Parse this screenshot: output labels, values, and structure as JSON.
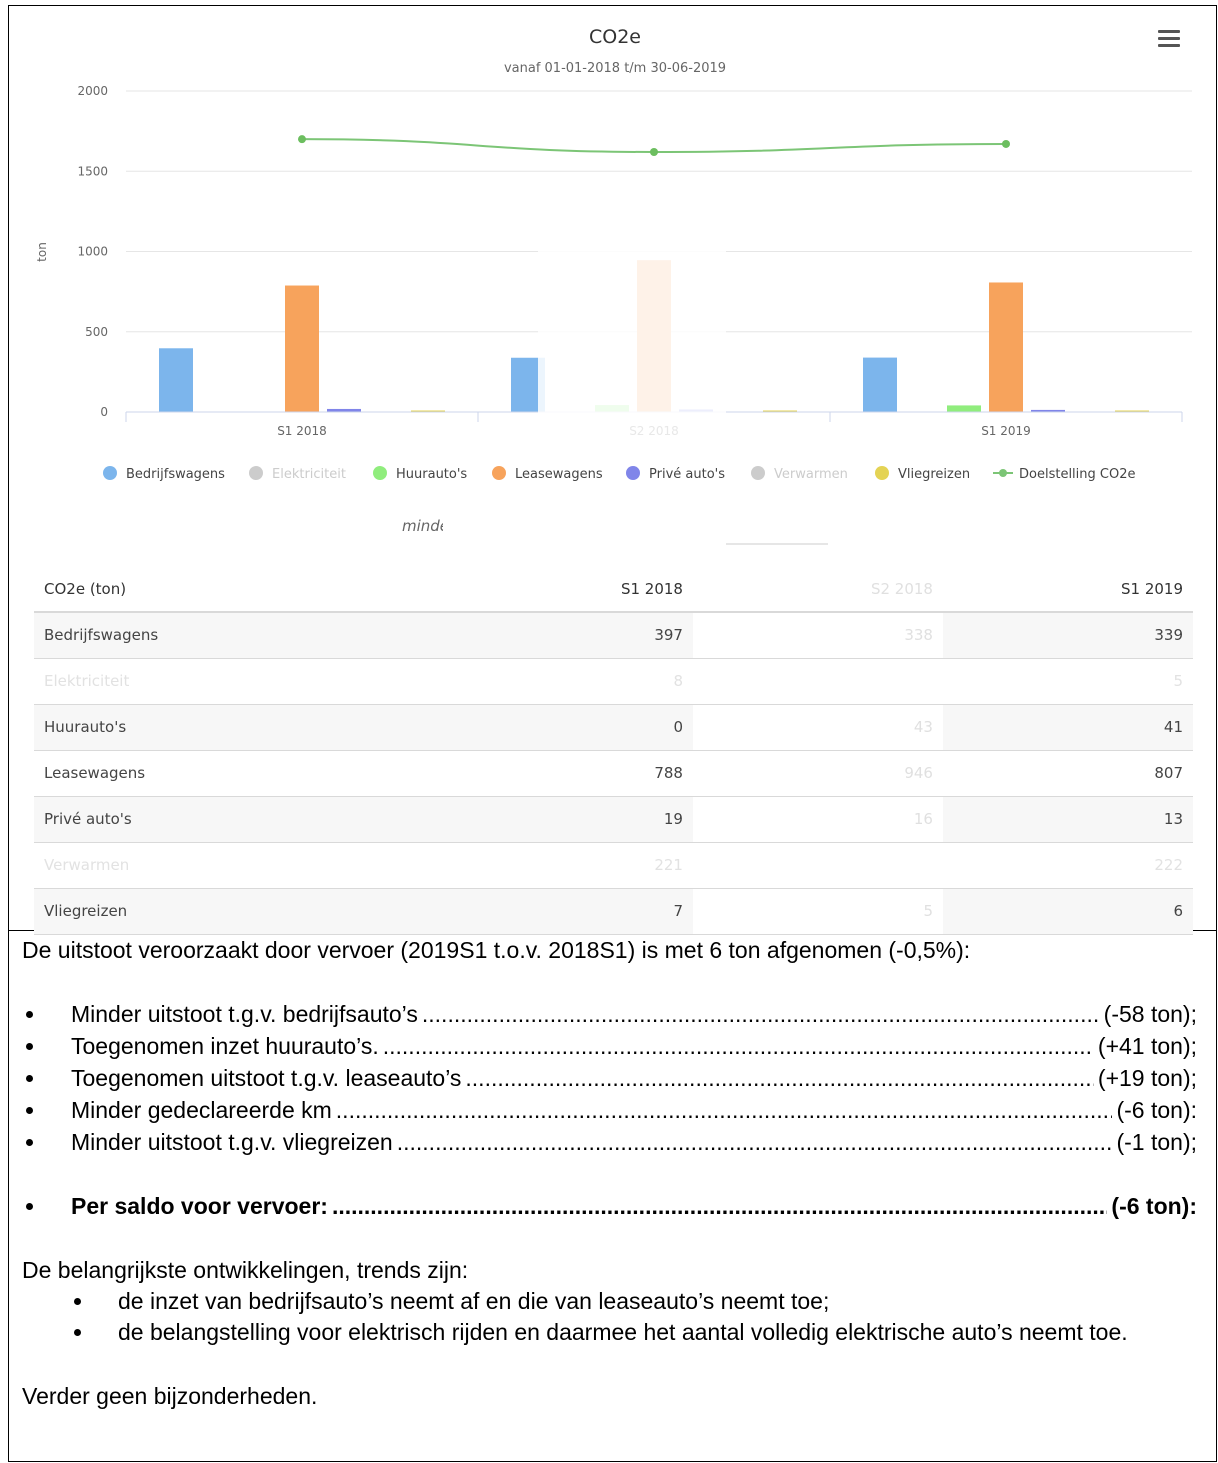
{
  "chart_data": {
    "type": "bar",
    "title": "CO2e",
    "subtitle": "vanaf 01-01-2018 t/m 30-06-2019",
    "ylabel": "ton",
    "ylim": [
      0,
      2000
    ],
    "yticks": [
      "0",
      "500",
      "1000",
      "1500",
      "2000"
    ],
    "ytick_values": [
      0,
      500,
      1000,
      1500,
      2000
    ],
    "categories": [
      "S1 2018",
      "S2 2018",
      "S1 2019"
    ],
    "series": [
      {
        "name": "Bedrijfswagens",
        "color": "#7cb5ec",
        "values": [
          397,
          338,
          339
        ],
        "visible": true
      },
      {
        "name": "Elektriciteit",
        "color": "#c6c6c6",
        "values": [
          8,
          0,
          5
        ],
        "visible": false
      },
      {
        "name": "Huurauto's",
        "color": "#90ed7d",
        "values": [
          0,
          43,
          41
        ],
        "visible": true
      },
      {
        "name": "Leasewagens",
        "color": "#f7a35c",
        "values": [
          788,
          946,
          807
        ],
        "visible": true
      },
      {
        "name": "Privé auto's",
        "color": "#8085e9",
        "values": [
          19,
          16,
          13
        ],
        "visible": true
      },
      {
        "name": "Verwarmen",
        "color": "#c6c6c6",
        "values": [
          221,
          0,
          222
        ],
        "visible": false
      },
      {
        "name": "Vliegreizen",
        "color": "#e4d354",
        "values": [
          7,
          5,
          6
        ],
        "visible": true
      },
      {
        "name": "Doelstelling CO2e",
        "color": "#7cc576",
        "type": "line",
        "values": [
          1700,
          1620,
          1670
        ],
        "visible": true
      }
    ],
    "faded_category": "S2 2018",
    "legend_position": "bottom",
    "grid": true
  },
  "legend_fragment": "minde",
  "table": {
    "header": [
      "CO2e (ton)",
      "S1 2018",
      "S2 2018",
      "S1 2019"
    ],
    "rows": [
      {
        "label": "Bedrijfswagens",
        "values": [
          "397",
          "338",
          "339"
        ],
        "faded": false
      },
      {
        "label": "Elektriciteit",
        "values": [
          "8",
          "",
          "5"
        ],
        "faded": true
      },
      {
        "label": "Huurauto's",
        "values": [
          "0",
          "43",
          "41"
        ],
        "faded": false
      },
      {
        "label": "Leasewagens",
        "values": [
          "788",
          "946",
          "807"
        ],
        "faded": false
      },
      {
        "label": "Privé auto's",
        "values": [
          "19",
          "16",
          "13"
        ],
        "faded": false
      },
      {
        "label": "Verwarmen",
        "values": [
          "221",
          "",
          "222"
        ],
        "faded": true
      },
      {
        "label": "Vliegreizen",
        "values": [
          "7",
          "5",
          "6"
        ],
        "faded": false
      }
    ]
  },
  "text": {
    "intro": "De uitstoot veroorzaakt door vervoer (2019S1 t.o.v. 2018S1) is met 6 ton afgenomen (-0,5%):",
    "bullets": [
      {
        "label": "Minder uitstoot t.g.v. bedrijfsauto’s",
        "value": "(-58 ton);"
      },
      {
        "label": "Toegenomen inzet huurauto’s.",
        "value": "(+41 ton);"
      },
      {
        "label": "Toegenomen uitstoot t.g.v. leaseauto’s",
        "value": "(+19 ton);"
      },
      {
        "label": "Minder gedeclareerde km",
        "value": "(-6 ton):"
      },
      {
        "label": "Minder uitstoot t.g.v. vliegreizen",
        "value": "(-1 ton);"
      }
    ],
    "total": {
      "label": "Per saldo voor vervoer:",
      "value": "(-6 ton):"
    },
    "trends_intro": "De belangrijkste ontwikkelingen, trends zijn:",
    "trends": [
      "de inzet van bedrijfsauto’s neemt af en die van leaseauto’s neemt toe;",
      "de belangstelling voor elektrisch rijden en daarmee het aantal volledig elektrische auto’s neemt toe."
    ],
    "closing": "Verder geen bijzonderheden."
  }
}
